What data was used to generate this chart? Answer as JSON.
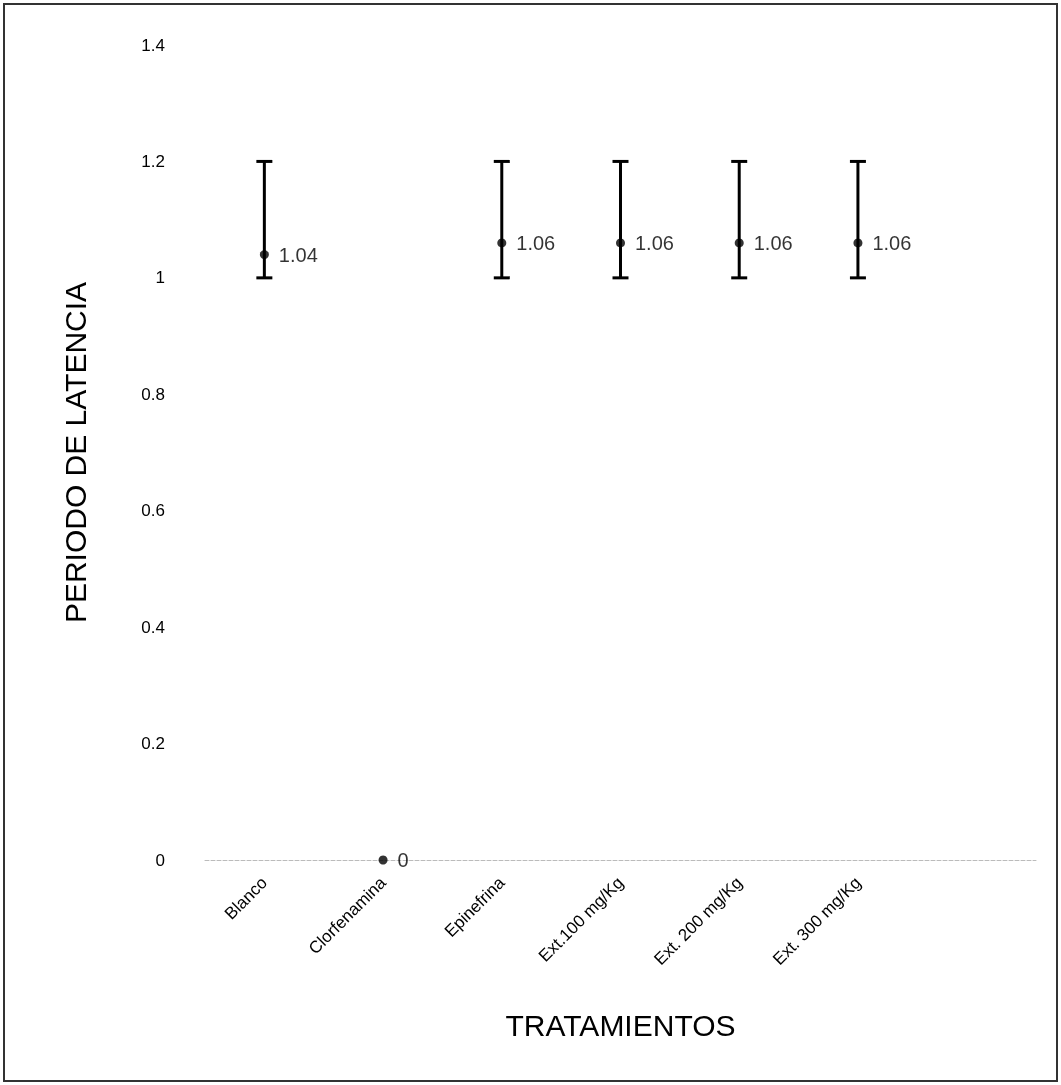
{
  "chart_data": {
    "type": "scatter",
    "xlabel": "TRATAMIENTOS",
    "ylabel": "PERIODO DE LATENCIA",
    "categories": [
      "Blanco",
      "Clorfenamina",
      "Epinefrina",
      "Ext.100 mg/Kg",
      "Ext. 200 mg/Kg",
      "Ext. 300 mg/Kg",
      null
    ],
    "values": [
      1.04,
      0,
      1.06,
      1.06,
      1.06,
      1.06,
      null
    ],
    "errors": [
      [
        1.0,
        1.2
      ],
      null,
      [
        1.0,
        1.2
      ],
      [
        1.0,
        1.2
      ],
      [
        1.0,
        1.2
      ],
      [
        1.0,
        1.2
      ],
      null
    ],
    "color": "#000000",
    "ylim": [
      0,
      1.4
    ],
    "yticks": [
      0,
      0.2,
      0.4,
      0.6,
      0.8,
      1,
      1.2,
      1.4
    ],
    "data_labels": true,
    "marker": "circle",
    "grid": false
  }
}
